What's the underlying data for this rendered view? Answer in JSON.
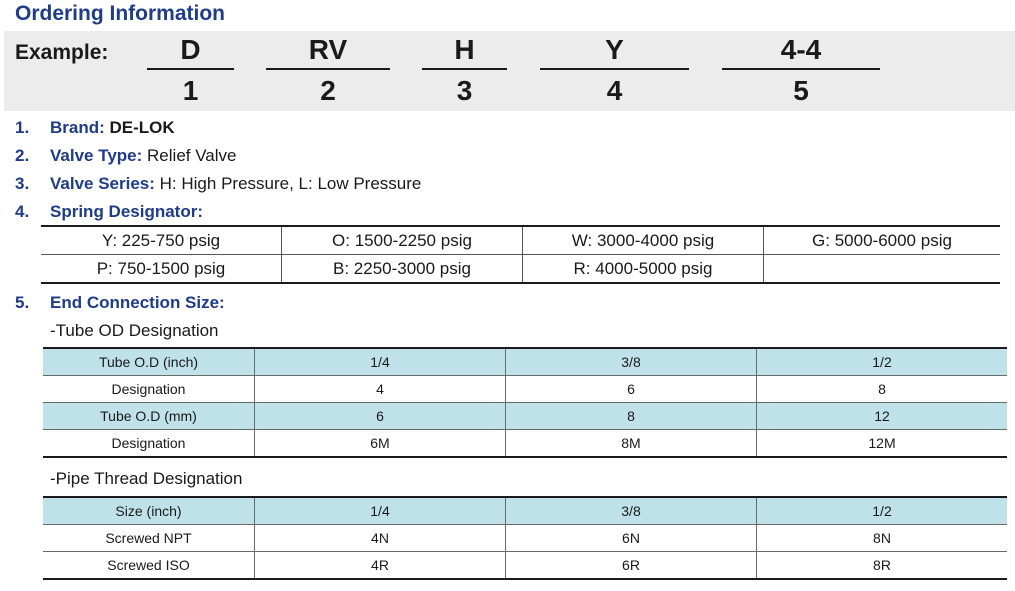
{
  "title": "Ordering Information",
  "example": {
    "label": "Example:",
    "parts": [
      {
        "code": "D",
        "num": "1"
      },
      {
        "code": "RV",
        "num": "2"
      },
      {
        "code": "H",
        "num": "3"
      },
      {
        "code": "Y",
        "num": "4"
      },
      {
        "code": "4-4",
        "num": "5"
      }
    ]
  },
  "items": [
    {
      "num": "1.",
      "key": "Brand:",
      "value": "DE-LOK"
    },
    {
      "num": "2.",
      "key": "Valve Type:",
      "value": "Relief Valve"
    },
    {
      "num": "3.",
      "key": "Valve Series:",
      "value": "H: High Pressure, L: Low Pressure"
    },
    {
      "num": "4.",
      "key": "Spring Designator:",
      "value": ""
    },
    {
      "num": "5.",
      "key": "End Connection Size:",
      "value": ""
    }
  ],
  "spring_table": [
    [
      "Y: 225-750 psig",
      "O: 1500-2250 psig",
      "W: 3000-4000 psig",
      "G: 5000-6000 psig"
    ],
    [
      "P: 750-1500 psig",
      "B: 2250-3000 psig",
      "R: 4000-5000 psig",
      ""
    ]
  ],
  "tube_od": {
    "heading": "-Tube OD Designation",
    "rows": [
      [
        "Tube O.D (inch)",
        "1/4",
        "3/8",
        "1/2"
      ],
      [
        "Designation",
        "4",
        "6",
        "8"
      ],
      [
        "Tube O.D (mm)",
        "6",
        "8",
        "12"
      ],
      [
        "Designation",
        "6M",
        "8M",
        "12M"
      ]
    ]
  },
  "pipe_thread": {
    "heading": "-Pipe Thread Designation",
    "rows": [
      [
        "Size (inch)",
        "1/4",
        "3/8",
        "1/2"
      ],
      [
        "Screwed NPT",
        "4N",
        "6N",
        "8N"
      ],
      [
        "Screwed ISO",
        "4R",
        "6R",
        "8R"
      ]
    ]
  },
  "colors": {
    "heading_blue": "#1f3c88",
    "header_row_bg": "#bfe1ea",
    "example_bg": "#ececec"
  }
}
